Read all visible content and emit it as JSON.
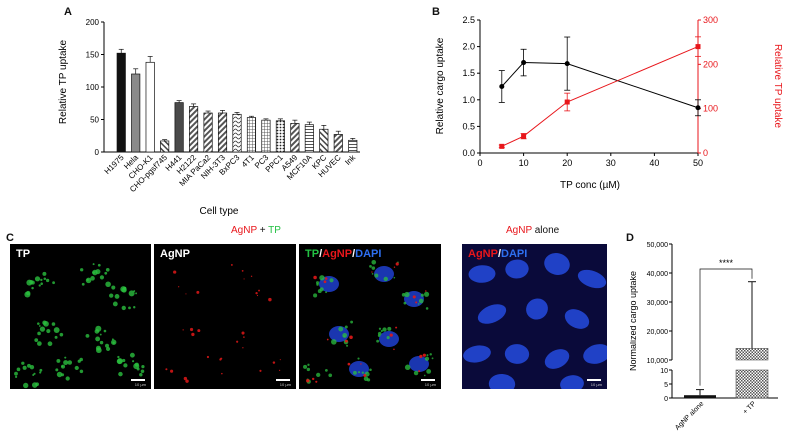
{
  "panels": {
    "A": {
      "letter": "A"
    },
    "B": {
      "letter": "B"
    },
    "C": {
      "letter": "C",
      "header_left": {
        "part1": "AgNP",
        "part2": " + ",
        "part3": "TP"
      },
      "header_right": {
        "part1": "AgNP",
        "part2": " alone"
      },
      "images": [
        {
          "label": "TP"
        },
        {
          "label": "AgNP"
        },
        {
          "label_parts": [
            "TP",
            "/",
            "AgNP",
            "/",
            "DAPI"
          ]
        },
        {
          "label_parts": [
            "AgNP",
            "/",
            "DAPI"
          ]
        }
      ],
      "scale_text": "10 µm"
    },
    "D": {
      "letter": "D"
    }
  },
  "colors": {
    "red": "#e8161b",
    "green": "#23c043",
    "blue": "#2e5fd8",
    "black": "#000000"
  },
  "chart_data": [
    {
      "panel": "A",
      "type": "bar",
      "xlabel": "Cell type",
      "ylabel": "Relative TP uptake",
      "ylim": [
        0,
        200
      ],
      "yticks": [
        0,
        50,
        100,
        150,
        200
      ],
      "categories": [
        "H1975",
        "Hela",
        "CHO-K1",
        "CHO-pgsf745",
        "H441",
        "H2122",
        "MIA PaCa2",
        "NIH-3T3",
        "BxPC3",
        "4T1",
        "PC3",
        "PPC1",
        "A549",
        "MCF10A",
        "KPC",
        "HUVEC",
        "Ink"
      ],
      "values": [
        152,
        120,
        138,
        17,
        76,
        70,
        60,
        60,
        58,
        53,
        49,
        48,
        44,
        42,
        35,
        27,
        18
      ],
      "errors": [
        6,
        8,
        9,
        2,
        3,
        4,
        3,
        4,
        3,
        2,
        2,
        3,
        5,
        4,
        6,
        5,
        3
      ],
      "patterns": [
        "black",
        "gray",
        "white",
        "stripe",
        "darkgray",
        "stripe",
        "stripe",
        "stripe",
        "wave",
        "grid",
        "grid",
        "dots",
        "stripe",
        "hlines",
        "stripe",
        "stripe",
        "hlines"
      ]
    },
    {
      "panel": "B",
      "type": "line",
      "xlabel": "TP conc (µM)",
      "xlim": [
        0,
        50
      ],
      "xticks": [
        0,
        10,
        20,
        30,
        40,
        50
      ],
      "series": [
        {
          "axis": "left",
          "ylabel": "Relative cargo uptake",
          "ylim": [
            0,
            2.5
          ],
          "yticks": [
            0.0,
            0.5,
            1.0,
            1.5,
            2.0,
            2.5
          ],
          "x": [
            5,
            10,
            20,
            50
          ],
          "y": [
            1.25,
            1.7,
            1.68,
            0.85
          ],
          "err": [
            0.3,
            0.25,
            0.5,
            0.15
          ],
          "color": "#000000"
        },
        {
          "axis": "right",
          "ylabel": "Relative TP uptake",
          "ylim": [
            0,
            300
          ],
          "yticks": [
            0,
            100,
            200,
            300
          ],
          "x": [
            5,
            10,
            20,
            50
          ],
          "y": [
            15,
            38,
            115,
            240
          ],
          "err": [
            3,
            6,
            20,
            22
          ],
          "color": "#e8161b"
        }
      ]
    },
    {
      "panel": "D",
      "type": "bar",
      "ylabel": "Normalized cargo uptake",
      "categories": [
        "AgNP alone",
        "+ TP"
      ],
      "values": [
        1,
        14000
      ],
      "errors": [
        2,
        23000
      ],
      "yticks_top": [
        "10,000",
        "20,000",
        "30,000",
        "40,000",
        "50,000"
      ],
      "yticks_bottom": [
        "0",
        "5",
        "10"
      ],
      "significance": "****"
    }
  ]
}
